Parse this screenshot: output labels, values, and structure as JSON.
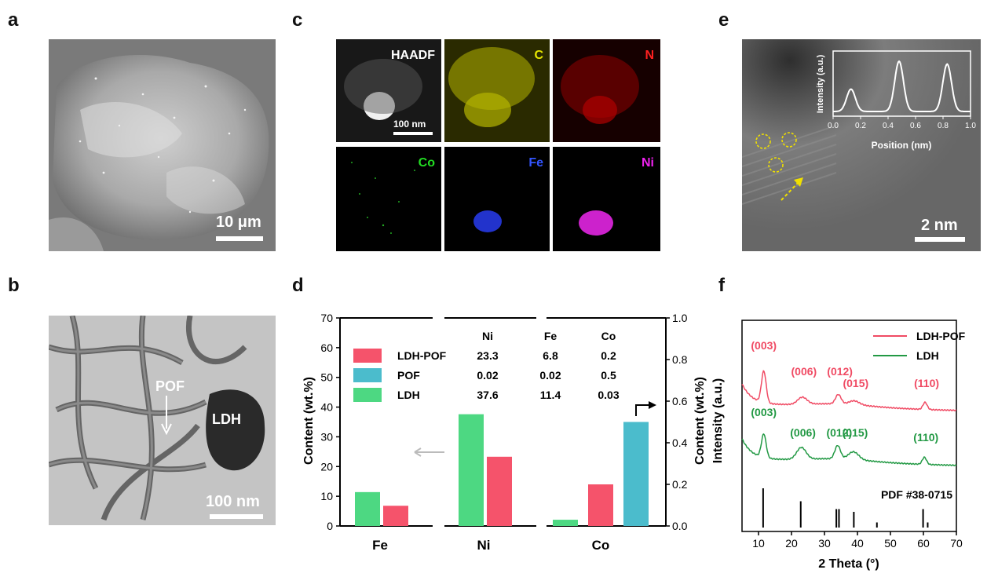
{
  "panels": {
    "a": {
      "label": "a",
      "scalebar": "10 μm"
    },
    "b": {
      "label": "b",
      "scalebar": "100 nm",
      "labels": {
        "pof": "POF",
        "ldh": "LDH"
      }
    },
    "c": {
      "label": "c",
      "tiles": [
        {
          "name": "HAADF",
          "color": "#ffffff"
        },
        {
          "name": "C",
          "color": "#e6e600"
        },
        {
          "name": "N",
          "color": "#ff2020"
        },
        {
          "name": "Co",
          "color": "#22dd22"
        },
        {
          "name": "Fe",
          "color": "#3355ff"
        },
        {
          "name": "Ni",
          "color": "#ee22ee"
        }
      ],
      "scalebar": "100 nm"
    },
    "d": {
      "label": "d"
    },
    "e": {
      "label": "e",
      "scalebar": "2 nm"
    },
    "f": {
      "label": "f"
    }
  },
  "chart_data": [
    {
      "panel": "d",
      "type": "bar",
      "categories": [
        "Fe",
        "Ni",
        "Co"
      ],
      "series": [
        {
          "name": "LDH-POF",
          "values": [
            6.8,
            23.3,
            0.2
          ],
          "color": "#f5536b"
        },
        {
          "name": "POF",
          "values": [
            0.02,
            0.02,
            0.5
          ],
          "color": "#4bbccc"
        },
        {
          "name": "LDH",
          "values": [
            11.4,
            37.6,
            0.03
          ],
          "color": "#4dd882"
        }
      ],
      "ylabel_left": "Content (wt.%)",
      "ylim_left": [
        0,
        70
      ],
      "yticks_left": [
        "0",
        "10",
        "20",
        "30",
        "40",
        "50",
        "60",
        "70"
      ],
      "ylabel_right": "Content (wt.%)",
      "ylim_right": [
        0,
        1.0
      ],
      "yticks_right": [
        "0.0",
        "0.2",
        "0.4",
        "0.6",
        "0.8",
        "1.0"
      ],
      "table": {
        "headers": [
          "Ni",
          "Fe",
          "Co"
        ],
        "rows": [
          {
            "name": "LDH-POF",
            "values": [
              "23.3",
              "6.8",
              "0.2"
            ]
          },
          {
            "name": "POF",
            "values": [
              "0.02",
              "0.02",
              "0.5"
            ]
          },
          {
            "name": "LDH",
            "values": [
              "37.6",
              "11.4",
              "0.03"
            ]
          }
        ]
      }
    },
    {
      "panel": "e-inset",
      "type": "line",
      "xlabel": "Position (nm)",
      "ylabel": "Intensity (a.u.)",
      "xlim": [
        0.0,
        1.0
      ],
      "xticks": [
        "0.0",
        "0.2",
        "0.4",
        "0.6",
        "0.8",
        "1.0"
      ],
      "peaks_nm": [
        0.13,
        0.48,
        0.83
      ],
      "peak_heights": [
        0.4,
        0.9,
        0.85
      ]
    },
    {
      "panel": "f",
      "type": "line",
      "xlabel": "2 Theta (°)",
      "ylabel": "Intensity (a.u.)",
      "xlim": [
        5,
        70
      ],
      "xticks": [
        "10",
        "20",
        "30",
        "40",
        "50",
        "60",
        "70"
      ],
      "series": [
        {
          "name": "LDH-POF",
          "color": "#f04b64",
          "peaks": [
            {
              "pos": 11.6,
              "label": "(003)"
            },
            {
              "pos": 23.3,
              "label": "(006)"
            },
            {
              "pos": 34.2,
              "label": "(012)"
            },
            {
              "pos": 39.0,
              "label": "(015)"
            },
            {
              "pos": 60.5,
              "label": "(110)"
            }
          ]
        },
        {
          "name": "LDH",
          "color": "#229944",
          "peaks": [
            {
              "pos": 11.6,
              "label": "(003)"
            },
            {
              "pos": 23.0,
              "label": "(006)"
            },
            {
              "pos": 34.0,
              "label": "(012)"
            },
            {
              "pos": 38.8,
              "label": "(015)"
            },
            {
              "pos": 60.3,
              "label": "(110)"
            }
          ]
        }
      ],
      "reference": {
        "label": "PDF #38-0715",
        "lines": [
          {
            "pos": 11.4,
            "h": 1.0
          },
          {
            "pos": 22.8,
            "h": 0.67
          },
          {
            "pos": 33.6,
            "h": 0.47
          },
          {
            "pos": 34.4,
            "h": 0.47
          },
          {
            "pos": 38.9,
            "h": 0.4
          },
          {
            "pos": 45.9,
            "h": 0.13
          },
          {
            "pos": 59.9,
            "h": 0.47
          },
          {
            "pos": 61.3,
            "h": 0.13
          }
        ]
      }
    }
  ]
}
